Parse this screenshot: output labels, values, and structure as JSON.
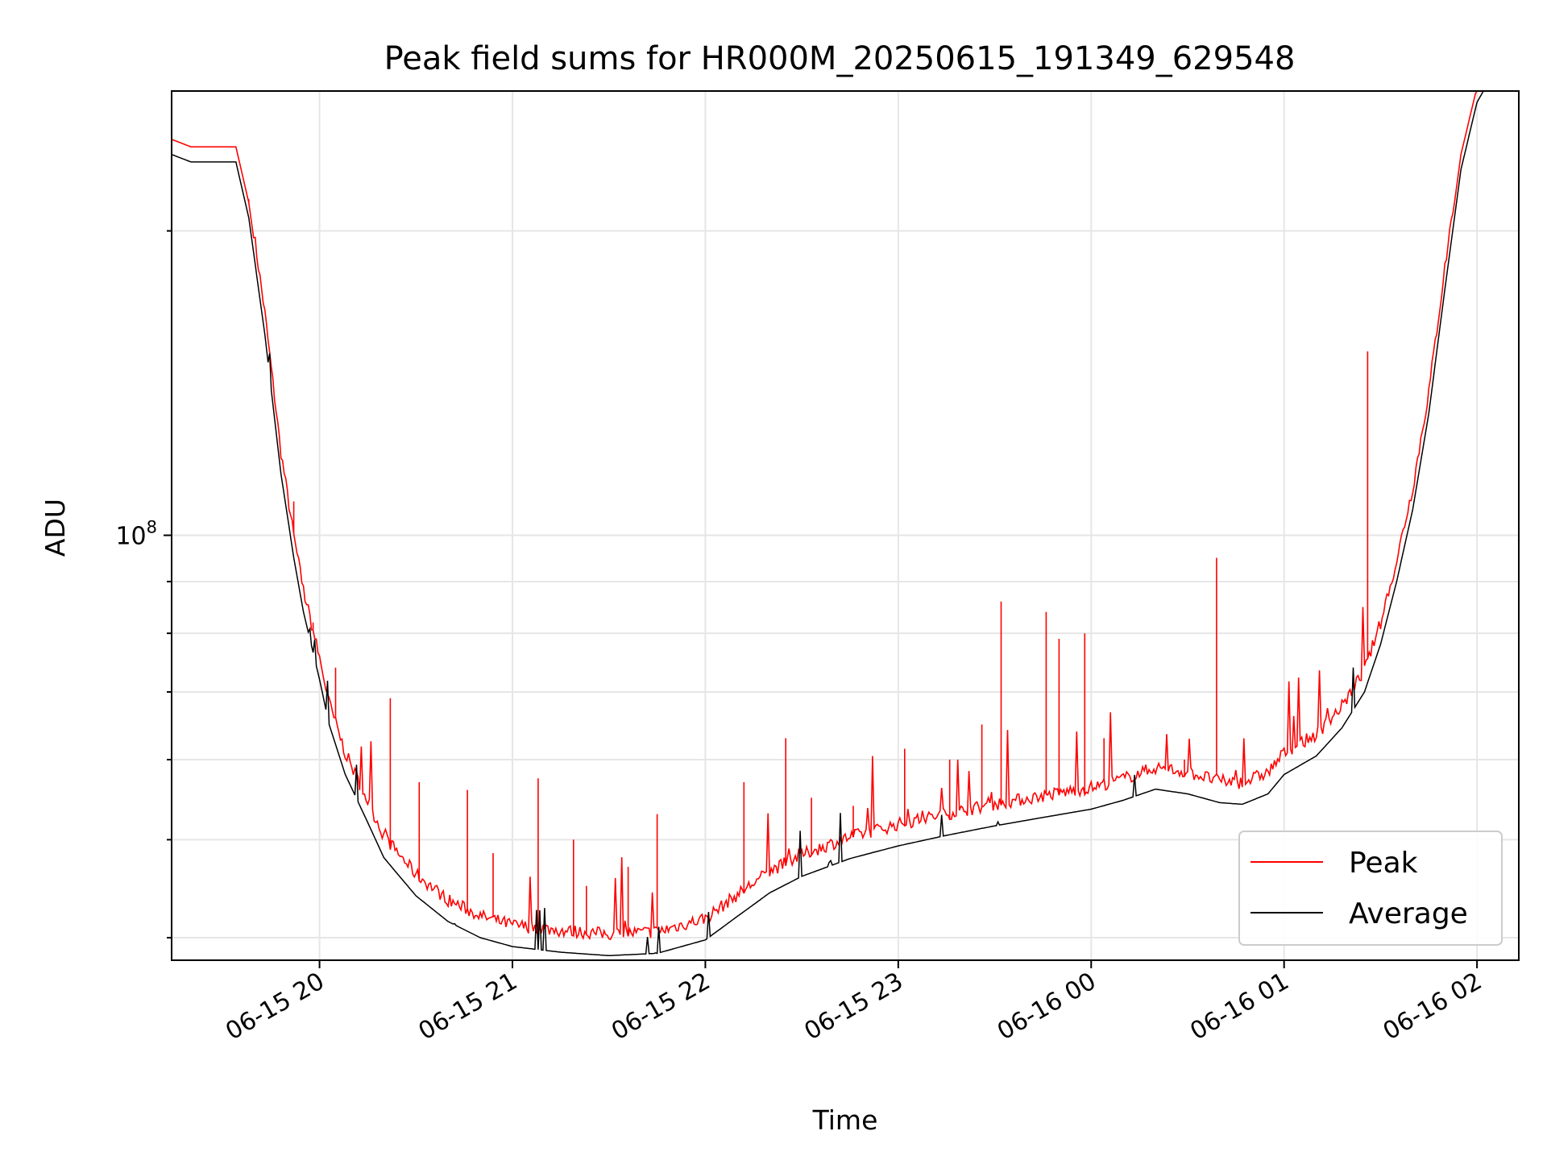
{
  "chart_data": {
    "type": "line",
    "title": "Peak field sums for HR000M_20250615_191349_629548",
    "xlabel": "Time",
    "ylabel": "ADU",
    "yscale": "log",
    "grid": true,
    "legend_location": "lower right",
    "x_start": "2025-06-15 19:14",
    "x_end": "2025-06-16 02:13",
    "xlim": [
      "2025-06-15 19:14",
      "2025-06-16 02:13"
    ],
    "ylim": [
      38000000,
      275000000
    ],
    "x_ticks": [
      "06-15 20",
      "06-15 21",
      "06-15 22",
      "06-15 23",
      "06-16 00",
      "06-16 01",
      "06-16 02"
    ],
    "y_ticks": [
      {
        "value": 100000000,
        "base": "10",
        "exp": "8"
      }
    ],
    "series": [
      {
        "name": "Average",
        "color": "#000000",
        "points": [
          [
            "2025-06-15 19:14",
            238000000
          ],
          [
            "2025-06-15 19:20",
            234000000
          ],
          [
            "2025-06-15 19:34",
            234000000
          ],
          [
            "2025-06-15 19:38",
            206000000
          ],
          [
            "2025-06-15 19:43",
            158000000
          ],
          [
            "2025-06-15 19:48",
            115000000
          ],
          [
            "2025-06-15 19:52",
            95000000
          ],
          [
            "2025-06-15 19:55",
            84000000
          ],
          [
            "2025-06-15 20:00",
            72000000
          ],
          [
            "2025-06-15 20:03",
            65000000
          ],
          [
            "2025-06-15 20:08",
            58000000
          ],
          [
            "2025-06-15 20:15",
            52000000
          ],
          [
            "2025-06-15 20:20",
            48000000
          ],
          [
            "2025-06-15 20:30",
            44000000
          ],
          [
            "2025-06-15 20:40",
            41500000
          ],
          [
            "2025-06-15 20:50",
            40000000
          ],
          [
            "2025-06-15 21:00",
            39200000
          ],
          [
            "2025-06-15 21:15",
            38700000
          ],
          [
            "2025-06-15 21:30",
            38400000
          ],
          [
            "2025-06-15 21:45",
            38600000
          ],
          [
            "2025-06-15 22:00",
            39800000
          ],
          [
            "2025-06-15 22:10",
            42000000
          ],
          [
            "2025-06-15 22:20",
            44300000
          ],
          [
            "2025-06-15 22:30",
            46000000
          ],
          [
            "2025-06-15 22:45",
            47900000
          ],
          [
            "2025-06-15 23:00",
            49300000
          ],
          [
            "2025-06-15 23:15",
            50500000
          ],
          [
            "2025-06-15 23:30",
            51600000
          ],
          [
            "2025-06-15 23:45",
            52600000
          ],
          [
            "2025-06-16 00:00",
            53600000
          ],
          [
            "2025-06-16 00:10",
            54700000
          ],
          [
            "2025-06-16 00:20",
            56100000
          ],
          [
            "2025-06-16 00:30",
            55500000
          ],
          [
            "2025-06-16 00:40",
            54400000
          ],
          [
            "2025-06-16 00:47",
            54200000
          ],
          [
            "2025-06-16 00:55",
            55500000
          ],
          [
            "2025-06-16 01:00",
            58000000
          ],
          [
            "2025-06-16 01:10",
            60500000
          ],
          [
            "2025-06-16 01:18",
            64500000
          ],
          [
            "2025-06-16 01:25",
            70000000
          ],
          [
            "2025-06-16 01:30",
            78000000
          ],
          [
            "2025-06-16 01:35",
            90000000
          ],
          [
            "2025-06-16 01:40",
            106000000
          ],
          [
            "2025-06-16 01:45",
            132000000
          ],
          [
            "2025-06-16 01:50",
            175000000
          ],
          [
            "2025-06-16 01:55",
            230000000
          ],
          [
            "2025-06-16 02:00",
            268000000
          ],
          [
            "2025-06-16 02:02",
            275000000
          ],
          [
            "2025-06-16 02:13",
            275000000
          ]
        ]
      },
      {
        "name": "Peak",
        "color": "#ff0000",
        "offset_factor": 1.035,
        "spikes": [
          [
            "2025-06-15 19:38",
            215000000
          ],
          [
            "2025-06-15 19:52",
            108000000
          ],
          [
            "2025-06-15 19:58",
            82000000
          ],
          [
            "2025-06-15 20:05",
            74000000
          ],
          [
            "2025-06-15 20:16",
            61000000
          ],
          [
            "2025-06-15 20:22",
            69000000
          ],
          [
            "2025-06-15 20:31",
            57000000
          ],
          [
            "2025-06-15 20:46",
            56000000
          ],
          [
            "2025-06-15 20:54",
            48500000
          ],
          [
            "2025-06-15 21:08",
            57500000
          ],
          [
            "2025-06-15 21:19",
            50000000
          ],
          [
            "2025-06-15 21:23",
            45000000
          ],
          [
            "2025-06-15 21:36",
            47000000
          ],
          [
            "2025-06-15 21:45",
            53000000
          ],
          [
            "2025-06-15 22:12",
            57000000
          ],
          [
            "2025-06-15 22:25",
            63000000
          ],
          [
            "2025-06-15 22:33",
            55000000
          ],
          [
            "2025-06-15 22:46",
            54000000
          ],
          [
            "2025-06-15 23:02",
            61500000
          ],
          [
            "2025-06-15 23:16",
            60000000
          ],
          [
            "2025-06-15 23:26",
            65000000
          ],
          [
            "2025-06-15 23:32",
            86000000
          ],
          [
            "2025-06-15 23:46",
            84000000
          ],
          [
            "2025-06-15 23:50",
            79000000
          ],
          [
            "2025-06-15 23:58",
            80000000
          ],
          [
            "2025-06-16 00:04",
            63000000
          ],
          [
            "2025-06-16 00:29",
            60000000
          ],
          [
            "2025-06-16 00:39",
            95000000
          ],
          [
            "2025-06-16 01:26",
            152000000
          ]
        ]
      }
    ]
  }
}
